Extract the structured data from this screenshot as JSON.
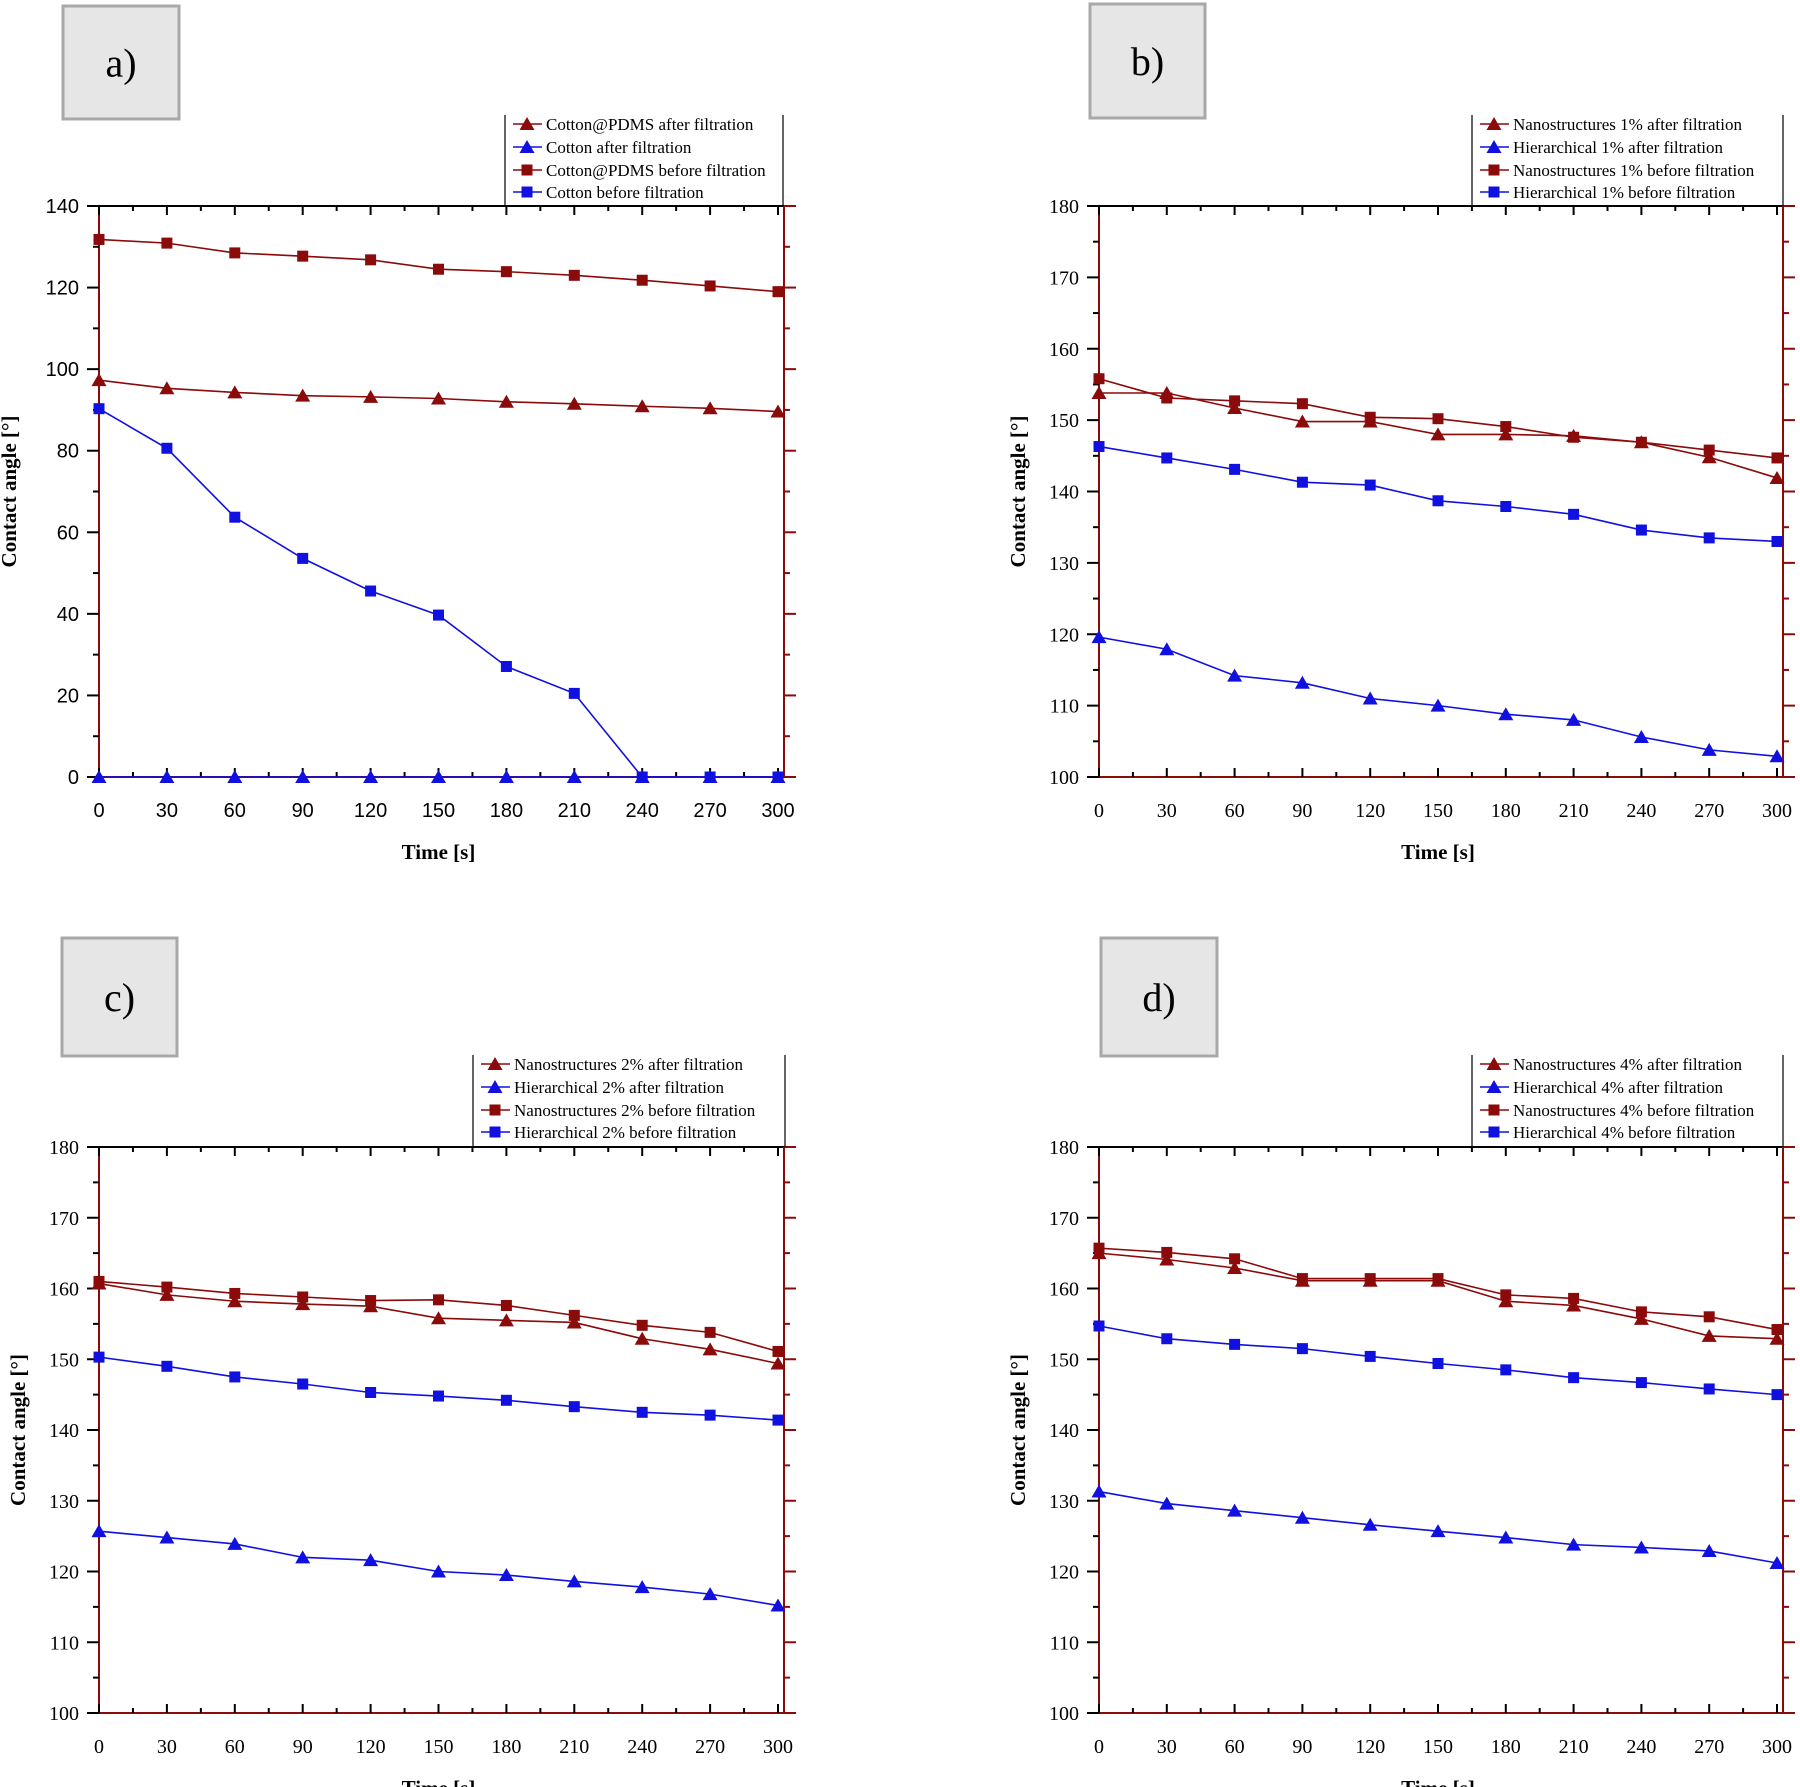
{
  "chart_data": [
    {
      "panel_label": "a)",
      "type": "line",
      "xlabel": "Time [s]",
      "ylabel": "Contact angle [°]",
      "x": [
        0,
        30,
        60,
        90,
        120,
        150,
        180,
        210,
        240,
        270,
        300
      ],
      "xticks": [
        "0",
        "30",
        "60",
        "90",
        "120",
        "150",
        "180",
        "210",
        "240",
        "270",
        "300"
      ],
      "yticks": [
        "0",
        "20",
        "40",
        "60",
        "80",
        "100",
        "120",
        "140"
      ],
      "ylim": [
        0,
        140
      ],
      "legend_position": "top-right",
      "series": [
        {
          "name": "Cotton@PDMS after filtration",
          "marker": "triangle",
          "color": "#8b0a0a",
          "values": [
            97.3,
            95.3,
            94.3,
            93.5,
            93.2,
            92.8,
            92.0,
            91.5,
            90.9,
            90.4,
            89.6
          ]
        },
        {
          "name": "Cotton after filtration",
          "marker": "triangle",
          "color": "#1010e0",
          "values": [
            0,
            0,
            0,
            0,
            0,
            0,
            0,
            0,
            0,
            0,
            0
          ]
        },
        {
          "name": "Cotton@PDMS before filtration",
          "marker": "square",
          "color": "#8b0a0a",
          "values": [
            131.8,
            130.9,
            128.5,
            127.7,
            126.8,
            124.5,
            123.9,
            123.0,
            121.8,
            120.4,
            119.0
          ]
        },
        {
          "name": "Cotton before filtration",
          "marker": "square",
          "color": "#1010e0",
          "values": [
            90.3,
            80.6,
            63.7,
            53.6,
            45.6,
            39.7,
            27.1,
            20.5,
            0,
            0,
            0
          ]
        }
      ]
    },
    {
      "panel_label": "b)",
      "type": "line",
      "xlabel": "Time [s]",
      "ylabel": "Contact angle [°]",
      "x": [
        0,
        30,
        60,
        90,
        120,
        150,
        180,
        210,
        240,
        270,
        300
      ],
      "xticks": [
        "0",
        "30",
        "60",
        "90",
        "120",
        "150",
        "180",
        "210",
        "240",
        "270",
        "300"
      ],
      "yticks": [
        "100",
        "110",
        "120",
        "130",
        "140",
        "150",
        "160",
        "170",
        "180"
      ],
      "ylim": [
        100,
        180
      ],
      "legend_position": "top-right",
      "series": [
        {
          "name": "Nanostructures 1% after filtration",
          "marker": "triangle",
          "color": "#8b0a0a",
          "values": [
            153.8,
            153.8,
            151.7,
            149.8,
            149.8,
            148.0,
            148.0,
            147.8,
            146.9,
            144.8,
            141.9
          ]
        },
        {
          "name": "Hierarchical 1% after filtration",
          "marker": "triangle",
          "color": "#1010e0",
          "values": [
            119.6,
            117.9,
            114.2,
            113.2,
            111.0,
            110.0,
            108.8,
            108.0,
            105.6,
            103.8,
            102.9
          ]
        },
        {
          "name": "Nanostructures 1% before filtration",
          "marker": "square",
          "color": "#8b0a0a",
          "values": [
            155.8,
            153.1,
            152.7,
            152.3,
            150.4,
            150.2,
            149.1,
            147.6,
            146.9,
            145.8,
            144.7
          ]
        },
        {
          "name": "Hierarchical 1% before filtration",
          "marker": "square",
          "color": "#1010e0",
          "values": [
            146.3,
            144.7,
            143.1,
            141.3,
            140.9,
            138.7,
            137.9,
            136.8,
            134.6,
            133.5,
            133.0
          ]
        }
      ]
    },
    {
      "panel_label": "c)",
      "type": "line",
      "xlabel": "Time [s]",
      "ylabel": "Contact angle [°]",
      "x": [
        0,
        30,
        60,
        90,
        120,
        150,
        180,
        210,
        240,
        270,
        300
      ],
      "xticks": [
        "0",
        "30",
        "60",
        "90",
        "120",
        "150",
        "180",
        "210",
        "240",
        "270",
        "300"
      ],
      "yticks": [
        "100",
        "110",
        "120",
        "130",
        "140",
        "150",
        "160",
        "170",
        "180"
      ],
      "ylim": [
        100,
        180
      ],
      "legend_position": "top-right",
      "series": [
        {
          "name": "Nanostructures 2% after filtration",
          "marker": "triangle",
          "color": "#8b0a0a",
          "values": [
            160.7,
            159.1,
            158.2,
            157.8,
            157.5,
            155.8,
            155.5,
            155.2,
            152.9,
            151.4,
            149.4
          ]
        },
        {
          "name": "Hierarchical 2% after filtration",
          "marker": "triangle",
          "color": "#1010e0",
          "values": [
            125.7,
            124.8,
            123.9,
            122.0,
            121.6,
            120.0,
            119.5,
            118.6,
            117.8,
            116.8,
            115.2
          ]
        },
        {
          "name": "Nanostructures 2% before filtration",
          "marker": "square",
          "color": "#8b0a0a",
          "values": [
            161.0,
            160.2,
            159.3,
            158.8,
            158.3,
            158.4,
            157.6,
            156.2,
            154.8,
            153.8,
            151.1
          ]
        },
        {
          "name": "Hierarchical 2% before filtration",
          "marker": "square",
          "color": "#1010e0",
          "values": [
            150.3,
            149.0,
            147.5,
            146.5,
            145.3,
            144.8,
            144.2,
            143.3,
            142.5,
            142.1,
            141.4
          ]
        }
      ]
    },
    {
      "panel_label": "d)",
      "type": "line",
      "xlabel": "Time [s]",
      "ylabel": "Contact angle [°]",
      "x": [
        0,
        30,
        60,
        90,
        120,
        150,
        180,
        210,
        240,
        270,
        300
      ],
      "xticks": [
        "0",
        "30",
        "60",
        "90",
        "120",
        "150",
        "180",
        "210",
        "240",
        "270",
        "300"
      ],
      "yticks": [
        "100",
        "110",
        "120",
        "130",
        "140",
        "150",
        "160",
        "170",
        "180"
      ],
      "ylim": [
        100,
        180
      ],
      "legend_position": "top-right",
      "series": [
        {
          "name": "Nanostructures 4% after filtration",
          "marker": "triangle",
          "color": "#8b0a0a",
          "values": [
            165.0,
            164.1,
            162.9,
            161.1,
            161.1,
            161.1,
            158.2,
            157.6,
            155.7,
            153.3,
            152.9
          ]
        },
        {
          "name": "Hierarchical 4% after filtration",
          "marker": "triangle",
          "color": "#1010e0",
          "values": [
            131.3,
            129.6,
            128.6,
            127.6,
            126.6,
            125.7,
            124.8,
            123.8,
            123.4,
            122.9,
            121.2
          ]
        },
        {
          "name": "Nanostructures 4% before filtration",
          "marker": "square",
          "color": "#8b0a0a",
          "values": [
            165.7,
            165.1,
            164.2,
            161.4,
            161.4,
            161.4,
            159.1,
            158.6,
            156.7,
            156.0,
            154.2
          ]
        },
        {
          "name": "Hierarchical 4% before filtration",
          "marker": "square",
          "color": "#1010e0",
          "values": [
            154.7,
            152.9,
            152.1,
            151.5,
            150.4,
            149.4,
            148.5,
            147.4,
            146.7,
            145.8,
            145.0
          ]
        }
      ]
    }
  ]
}
